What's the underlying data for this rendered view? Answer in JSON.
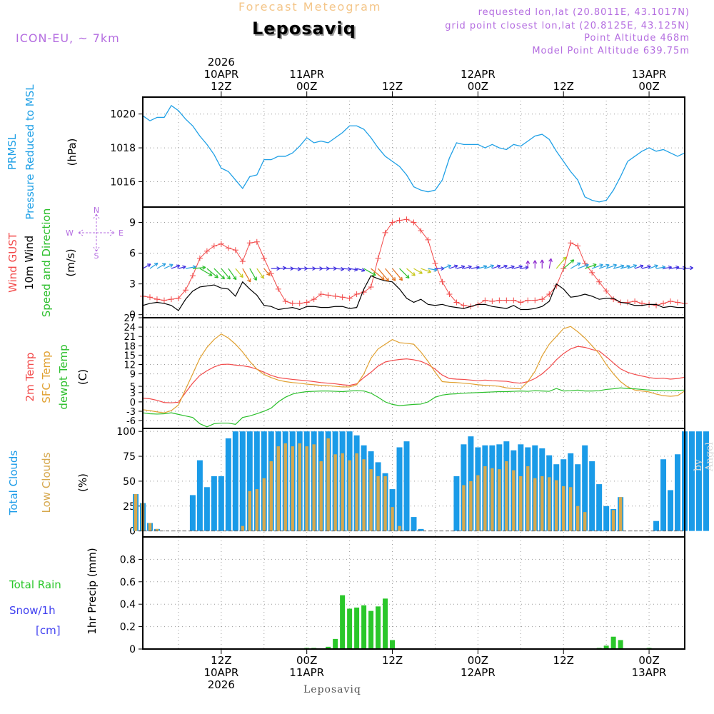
{
  "header": {
    "title": "Forecast Meteogram",
    "location": "Leposaviq",
    "model": "ICON-EU, ~ 7km",
    "requested": "requested lon,lat (20.8011E, 43.1017N)",
    "gridpoint": "grid point closest lon,lat (20.8125E, 43.125N)",
    "point_alt": "Point Altitude 468m",
    "model_alt": "Model Point Altitude 639.75m"
  },
  "footer_label": "Leposaviq",
  "watermark": "by Angel",
  "colors": {
    "pressure": "#1fa0e6",
    "gust": "#f24b4b",
    "wind": "#000000",
    "direction": "#2bbf2b",
    "temp2m": "#f24b4b",
    "sfc": "#e0a030",
    "dewpt": "#2bbf2b",
    "total_cloud": "#1a9be8",
    "low_cloud": "#d6a84e",
    "rain": "#2ac72a",
    "snow": "#4040f0",
    "purple": "#b46de0"
  },
  "time_axis": {
    "top_ticks": [
      {
        "hour": 12,
        "lines": [
          "2026",
          "10APR",
          "12Z"
        ]
      },
      {
        "hour": 24,
        "lines": [
          "11APR",
          "00Z"
        ]
      },
      {
        "hour": 36,
        "lines": [
          "12Z"
        ]
      },
      {
        "hour": 48,
        "lines": [
          "12APR",
          "00Z"
        ]
      },
      {
        "hour": 60,
        "lines": [
          "12Z"
        ]
      },
      {
        "hour": 72,
        "lines": [
          "13APR",
          "00Z"
        ]
      }
    ],
    "bottom_ticks": [
      {
        "hour": 12,
        "lines": [
          "12Z",
          "10APR",
          "2026"
        ]
      },
      {
        "hour": 24,
        "lines": [
          "00Z",
          "11APR"
        ]
      },
      {
        "hour": 36,
        "lines": [
          "12Z"
        ]
      },
      {
        "hour": 48,
        "lines": [
          "00Z",
          "12APR"
        ]
      },
      {
        "hour": 60,
        "lines": [
          "12Z"
        ]
      },
      {
        "hour": 72,
        "lines": [
          "00Z",
          "13APR"
        ]
      }
    ],
    "hour_range": [
      1,
      77
    ]
  },
  "chart_data": [
    {
      "type": "line",
      "panel": "pressure",
      "title": "PRMSL Pressure Reduced to MSL",
      "ylabel": "(hPa)",
      "ylim": [
        1014.5,
        1021.0
      ],
      "yticks": [
        1016,
        1018,
        1020
      ],
      "x_start_hour": 1,
      "series": [
        {
          "name": "PRMSL",
          "values": [
            1019.9,
            1019.6,
            1019.8,
            1019.8,
            1020.5,
            1020.2,
            1019.7,
            1019.3,
            1018.7,
            1018.2,
            1017.6,
            1016.8,
            1016.6,
            1016.1,
            1015.6,
            1016.3,
            1016.4,
            1017.3,
            1017.3,
            1017.5,
            1017.5,
            1017.7,
            1018.1,
            1018.6,
            1018.3,
            1018.4,
            1018.3,
            1018.6,
            1018.9,
            1019.3,
            1019.3,
            1019.1,
            1018.6,
            1018.0,
            1017.5,
            1017.2,
            1016.9,
            1016.4,
            1015.7,
            1015.5,
            1015.4,
            1015.5,
            1016.1,
            1017.4,
            1018.3,
            1018.2,
            1018.2,
            1018.2,
            1018.0,
            1018.2,
            1018.0,
            1017.9,
            1018.2,
            1018.1,
            1018.4,
            1018.7,
            1018.8,
            1018.5,
            1017.8,
            1017.2,
            1016.6,
            1016.1,
            1015.1,
            1014.9,
            1014.8,
            1014.9,
            1015.5,
            1016.3,
            1017.2,
            1017.5,
            1017.8,
            1018.0,
            1017.8,
            1017.9,
            1017.7,
            1017.5,
            1017.7
          ]
        }
      ]
    },
    {
      "type": "line",
      "panel": "wind",
      "title": "Wind GUST / 10m Wind Speed and Direction",
      "ylabel": "(m/s)",
      "ylim": [
        -0.3,
        10.5
      ],
      "yticks": [
        0,
        3,
        6,
        9
      ],
      "x_start_hour": 1,
      "compass": [
        "N",
        "W",
        "E",
        "S"
      ],
      "compass_label": "W <-|-> E",
      "series": [
        {
          "name": "Wind GUST",
          "values": [
            1.8,
            1.7,
            1.5,
            1.4,
            1.5,
            1.6,
            2.4,
            3.8,
            5.5,
            6.2,
            6.7,
            6.9,
            6.5,
            6.3,
            5.2,
            7.0,
            7.1,
            5.5,
            4.0,
            2.5,
            1.3,
            1.1,
            1.1,
            1.2,
            1.5,
            2.0,
            1.9,
            1.8,
            1.7,
            1.6,
            2.0,
            2.2,
            2.7,
            5.5,
            8.0,
            9.0,
            9.2,
            9.3,
            9.0,
            8.2,
            7.3,
            5.0,
            3.2,
            2.0,
            1.2,
            0.9,
            0.8,
            1.0,
            1.4,
            1.3,
            1.4,
            1.4,
            1.4,
            1.2,
            1.4,
            1.4,
            1.5,
            2.0,
            2.8,
            4.5,
            7.0,
            6.7,
            5.0,
            4.1,
            3.2,
            2.3,
            1.5,
            1.2,
            1.2,
            1.3,
            1.1,
            1.0,
            0.9,
            1.1,
            1.3,
            1.2,
            1.1
          ]
        },
        {
          "name": "10m Wind",
          "values": [
            0.9,
            1.1,
            1.2,
            1.1,
            0.9,
            0.4,
            1.5,
            2.3,
            2.7,
            2.8,
            2.9,
            2.6,
            2.5,
            1.8,
            3.2,
            2.5,
            1.9,
            0.9,
            0.8,
            0.5,
            0.6,
            0.7,
            0.5,
            0.8,
            0.8,
            0.7,
            0.7,
            0.8,
            0.8,
            0.6,
            0.7,
            2.5,
            3.8,
            3.5,
            3.3,
            3.2,
            2.5,
            1.6,
            1.2,
            1.5,
            1.0,
            0.9,
            1.0,
            0.8,
            0.7,
            0.6,
            0.8,
            1.0,
            1.0,
            0.8,
            0.7,
            0.6,
            0.9,
            0.5,
            0.5,
            0.6,
            0.8,
            1.3,
            3.0,
            2.5,
            1.7,
            1.8,
            2.0,
            1.8,
            1.5,
            1.6,
            1.6,
            1.2,
            1.1,
            0.9,
            0.9,
            1.0,
            1.0,
            0.7,
            0.8,
            0.7,
            0.7
          ]
        },
        {
          "name": "Direction (deg)",
          "values": [
            240,
            235,
            240,
            245,
            250,
            255,
            260,
            265,
            300,
            310,
            315,
            320,
            325,
            320,
            330,
            330,
            325,
            320,
            270,
            265,
            270,
            275,
            270,
            270,
            270,
            270,
            270,
            275,
            275,
            280,
            285,
            300,
            310,
            320,
            320,
            320,
            315,
            310,
            300,
            290,
            280,
            270,
            250,
            250,
            255,
            255,
            260,
            255,
            250,
            250,
            250,
            255,
            255,
            260,
            180,
            180,
            180,
            190,
            220,
            230,
            240,
            250,
            250,
            250,
            250,
            250,
            255,
            255,
            250,
            250,
            255,
            250,
            260,
            260,
            260,
            265,
            265
          ]
        }
      ]
    },
    {
      "type": "line",
      "panel": "temperature",
      "title": "2m Temp / SFC Temp / dewpt Temp",
      "ylabel": "(C)",
      "ylim": [
        -8.5,
        27.0
      ],
      "yticks": [
        -6,
        -3,
        0,
        3,
        5,
        9,
        12,
        15,
        18,
        21,
        24,
        27
      ],
      "x_start_hour": 1,
      "series": [
        {
          "name": "2m Temp",
          "values": [
            1.2,
            1.0,
            0.5,
            -0.2,
            -0.3,
            -0.1,
            3.0,
            6.0,
            8.5,
            10.0,
            11.2,
            12.0,
            12.1,
            11.8,
            11.6,
            11.2,
            10.5,
            9.5,
            8.5,
            7.8,
            7.5,
            7.2,
            7.0,
            6.8,
            6.5,
            6.2,
            6.0,
            5.8,
            5.5,
            5.3,
            5.8,
            7.8,
            9.5,
            11.5,
            12.8,
            13.3,
            13.6,
            13.8,
            13.5,
            13.0,
            12.0,
            10.5,
            8.6,
            7.5,
            7.3,
            7.2,
            7.0,
            6.8,
            7.0,
            6.8,
            6.7,
            6.6,
            6.2,
            6.0,
            6.5,
            7.5,
            9.0,
            11.0,
            13.5,
            15.5,
            17.0,
            17.8,
            17.5,
            16.8,
            16.3,
            14.5,
            12.5,
            10.6,
            9.5,
            8.8,
            8.3,
            7.8,
            7.5,
            7.6,
            7.3,
            7.5,
            7.9
          ]
        },
        {
          "name": "SFC Temp",
          "values": [
            -2.5,
            -2.8,
            -3.2,
            -3.5,
            -2.8,
            -1.0,
            4.0,
            9.0,
            14.0,
            17.5,
            20.0,
            21.8,
            20.5,
            18.5,
            16.0,
            13.0,
            10.5,
            8.8,
            7.8,
            7.0,
            6.5,
            6.2,
            6.0,
            5.7,
            5.5,
            5.3,
            5.2,
            5.0,
            4.8,
            4.8,
            5.5,
            9.0,
            14.0,
            17.0,
            18.5,
            20.0,
            19.0,
            18.8,
            18.5,
            16.0,
            13.0,
            9.5,
            6.5,
            6.3,
            6.2,
            6.0,
            5.8,
            5.5,
            5.3,
            5.2,
            5.0,
            4.5,
            4.3,
            4.2,
            6.5,
            9.8,
            14.8,
            18.5,
            21.0,
            23.5,
            24.2,
            22.5,
            20.5,
            18.0,
            15.5,
            12.0,
            9.0,
            6.5,
            4.8,
            3.8,
            3.5,
            3.2,
            2.5,
            2.0,
            1.8,
            2.0,
            3.5
          ]
        },
        {
          "name": "dewpt Temp",
          "values": [
            -3.5,
            -3.8,
            -3.9,
            -3.8,
            -3.5,
            -4.0,
            -4.5,
            -5.0,
            -7.0,
            -8.0,
            -7.0,
            -6.8,
            -6.8,
            -7.2,
            -5.0,
            -4.5,
            -3.8,
            -3.0,
            -2.0,
            0.0,
            1.5,
            2.5,
            3.0,
            3.3,
            3.4,
            3.5,
            3.5,
            3.4,
            3.3,
            3.5,
            3.6,
            3.5,
            2.8,
            1.5,
            0.0,
            -0.8,
            -1.2,
            -1.0,
            -0.8,
            -0.7,
            0.0,
            1.5,
            2.2,
            2.5,
            2.6,
            2.8,
            2.9,
            3.0,
            3.1,
            3.2,
            3.3,
            3.3,
            3.4,
            3.5,
            3.4,
            3.6,
            3.5,
            3.4,
            4.3,
            3.5,
            3.6,
            3.8,
            3.5,
            3.5,
            3.6,
            4.0,
            4.2,
            4.5,
            4.3,
            4.2,
            4.0,
            3.8,
            3.7,
            3.6,
            3.6,
            3.7,
            3.8
          ]
        }
      ]
    },
    {
      "type": "bar",
      "panel": "clouds",
      "title": "Total Clouds / Low Clouds",
      "ylabel": "(%)",
      "ylim": [
        -6,
        103
      ],
      "yticks": [
        0,
        25,
        50,
        75,
        100
      ],
      "x_start_hour": 0,
      "series": [
        {
          "name": "Total Clouds",
          "values": [
            37,
            28,
            8,
            2,
            0,
            0,
            0,
            0,
            36,
            71,
            44,
            55,
            55,
            93,
            100,
            100,
            100,
            100,
            100,
            100,
            100,
            100,
            100,
            100,
            100,
            100,
            100,
            100,
            100,
            100,
            100,
            96,
            86,
            80,
            69,
            58,
            42,
            84,
            90,
            14,
            2,
            0,
            0,
            0,
            0,
            55,
            87,
            95,
            84,
            86,
            86,
            87,
            90,
            81,
            87,
            84,
            86,
            83,
            76,
            67,
            72,
            78,
            67,
            86,
            70,
            47,
            25,
            22,
            34,
            0,
            0,
            0,
            0,
            10,
            72,
            41,
            77,
            100,
            100,
            100,
            100
          ]
        },
        {
          "name": "Low Clouds",
          "values": [
            37,
            28,
            8,
            2,
            0,
            0,
            0,
            0,
            0,
            0,
            0,
            0,
            0,
            0,
            0,
            5,
            40,
            42,
            53,
            70,
            85,
            88,
            85,
            88,
            85,
            87,
            70,
            93,
            77,
            78,
            71,
            78,
            72,
            62,
            55,
            55,
            24,
            5,
            0,
            0,
            0,
            0,
            0,
            0,
            0,
            0,
            46,
            50,
            56,
            65,
            63,
            62,
            70,
            61,
            55,
            65,
            53,
            55,
            54,
            51,
            45,
            44,
            25,
            19,
            0,
            0,
            0,
            21,
            34,
            0,
            0,
            0,
            0,
            0,
            0,
            0,
            0,
            0,
            0,
            0,
            0
          ]
        }
      ]
    },
    {
      "type": "bar",
      "panel": "precip",
      "title": "Total Rain / Snow/1h [cm]",
      "ylabel": "1hr Precip (mm)",
      "ylim": [
        0,
        1.0
      ],
      "yticks": [
        0,
        0.2,
        0.4,
        0.6,
        0.8
      ],
      "x_start_hour": 0,
      "series": [
        {
          "name": "Total Rain",
          "values": [
            0,
            0,
            0,
            0,
            0,
            0,
            0,
            0,
            0,
            0,
            0,
            0,
            0,
            0,
            0,
            0,
            0,
            0,
            0,
            0,
            0,
            0,
            0,
            0,
            0.01,
            0.01,
            0,
            0.02,
            0.09,
            0.48,
            0.36,
            0.37,
            0.39,
            0.34,
            0.38,
            0.45,
            0.08,
            0,
            0,
            0,
            0,
            0,
            0,
            0,
            0,
            0,
            0,
            0,
            0,
            0,
            0,
            0,
            0,
            0,
            0,
            0,
            0,
            0,
            0,
            0,
            0,
            0,
            0,
            0,
            0,
            0.01,
            0.03,
            0.11,
            0.08,
            0,
            0,
            0,
            0.01,
            0,
            0,
            0,
            0,
            0,
            0,
            0,
            0
          ]
        },
        {
          "name": "Snow/1h",
          "values": []
        }
      ],
      "legend": {
        "rain": "Total  Rain",
        "snow": "Snow/1h",
        "unit": "[cm]"
      }
    }
  ]
}
